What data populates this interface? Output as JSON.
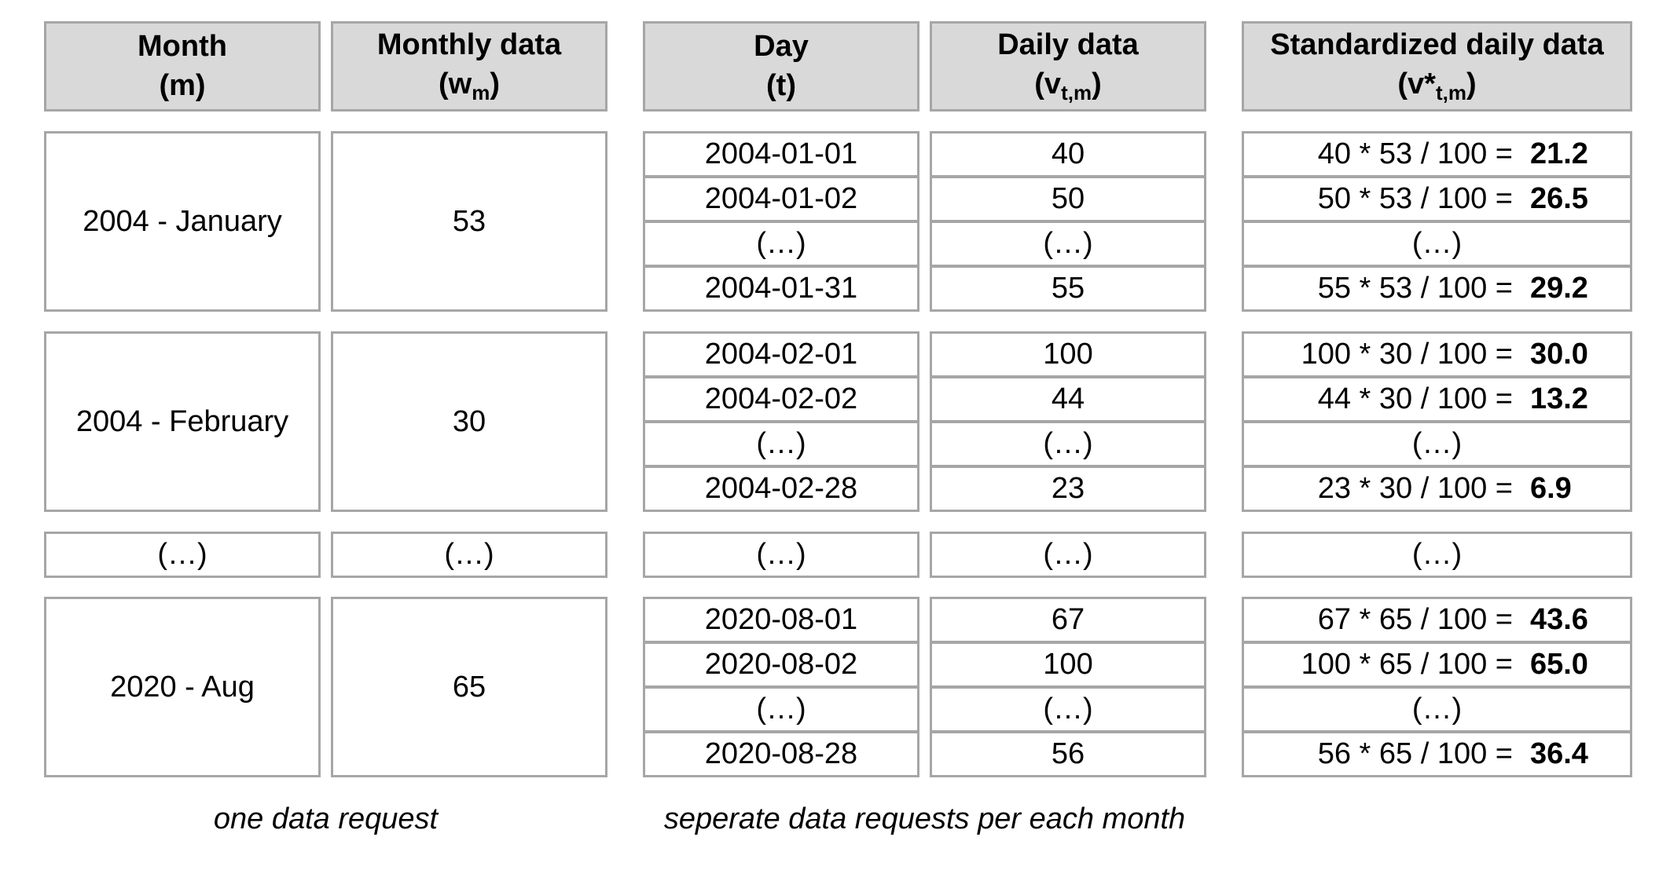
{
  "headers": {
    "month": {
      "title": "Month",
      "symbol": "m"
    },
    "monthly": {
      "title": "Monthly data",
      "symbol": "w",
      "sub": "m"
    },
    "day": {
      "title": "Day",
      "symbol": "t"
    },
    "daily": {
      "title": "Daily data",
      "symbol": "v",
      "sub": "t,m"
    },
    "standardized": {
      "title": "Standardized daily data",
      "symbol": "v*",
      "sub": "t,m"
    }
  },
  "ellipsis": "(…)",
  "groups": [
    {
      "month": "2004 - January",
      "monthly": "53",
      "days": [
        {
          "day": "2004-01-01",
          "daily": "40",
          "expr": "40 * 53 / 100 =",
          "result": "21.2"
        },
        {
          "day": "2004-01-02",
          "daily": "50",
          "expr": "50 * 53 / 100 =",
          "result": "26.5"
        },
        {
          "day": "(…)",
          "daily": "(…)",
          "expr": "(…)",
          "result": ""
        },
        {
          "day": "2004-01-31",
          "daily": "55",
          "expr": "55 * 53 / 100 =",
          "result": "29.2"
        }
      ]
    },
    {
      "month": "2004 - February",
      "monthly": "30",
      "days": [
        {
          "day": "2004-02-01",
          "daily": "100",
          "expr": "100 * 30 / 100 =",
          "result": "30.0"
        },
        {
          "day": "2004-02-02",
          "daily": "44",
          "expr": "44 * 30 / 100 =",
          "result": "13.2"
        },
        {
          "day": "(…)",
          "daily": "(…)",
          "expr": "(…)",
          "result": ""
        },
        {
          "day": "2004-02-28",
          "daily": "23",
          "expr": "23 * 30 / 100 =",
          "result": "6.9"
        }
      ]
    },
    {
      "month": "2020 - Aug",
      "monthly": "65",
      "days": [
        {
          "day": "2020-08-01",
          "daily": "67",
          "expr": "67 * 65 / 100 =",
          "result": "43.6"
        },
        {
          "day": "2020-08-02",
          "daily": "100",
          "expr": "100 * 65 / 100 =",
          "result": "65.0"
        },
        {
          "day": "(…)",
          "daily": "(…)",
          "expr": "(…)",
          "result": ""
        },
        {
          "day": "2020-08-28",
          "daily": "56",
          "expr": "56 * 65 / 100 =",
          "result": "36.4"
        }
      ]
    }
  ],
  "notes": {
    "left": "one data request",
    "right": "seperate data requests per each month"
  }
}
